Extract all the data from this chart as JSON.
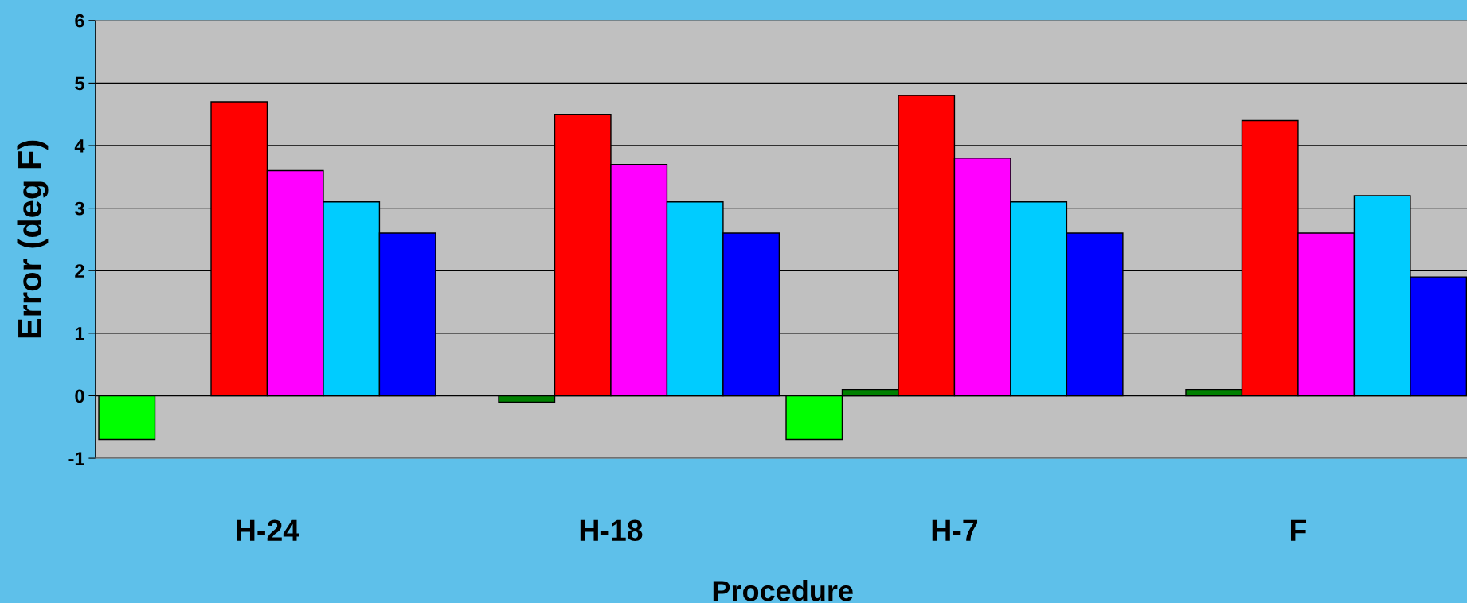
{
  "chart_data": {
    "type": "bar",
    "xlabel": "Procedure",
    "ylabel": "Error (deg F)",
    "categories": [
      "H-24",
      "H-18",
      "H-7",
      "F"
    ],
    "series": [
      {
        "color": "#00ff00",
        "values": [
          -0.7,
          null,
          -0.7,
          null
        ]
      },
      {
        "color": "#008000",
        "values": [
          null,
          -0.1,
          0.1,
          0.1
        ]
      },
      {
        "color": "#ff0000",
        "values": [
          4.7,
          4.5,
          4.8,
          4.4
        ]
      },
      {
        "color": "#ff00ff",
        "values": [
          3.6,
          3.7,
          3.8,
          2.6
        ]
      },
      {
        "color": "#00ccff",
        "values": [
          3.1,
          3.1,
          3.1,
          3.2
        ]
      },
      {
        "color": "#0000ff",
        "values": [
          2.6,
          2.6,
          2.6,
          1.9
        ]
      }
    ],
    "ylim": [
      -1,
      6
    ],
    "yticks": [
      -1,
      0,
      1,
      2,
      3,
      4,
      5,
      6
    ],
    "grid": "y",
    "legend": false
  }
}
